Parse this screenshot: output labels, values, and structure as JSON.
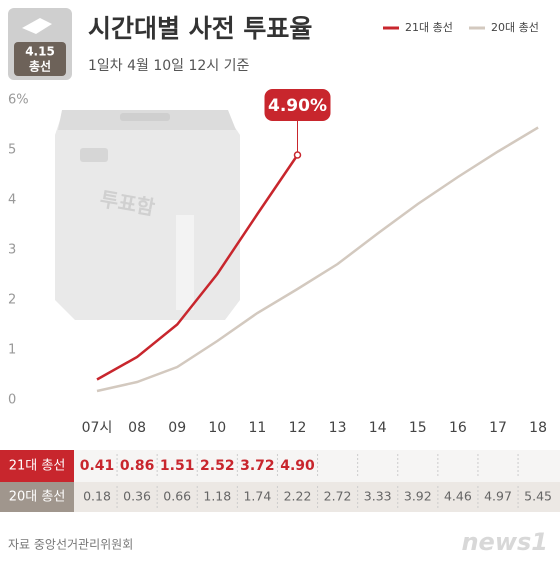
{
  "chart_data": {
    "type": "line",
    "title": "시간대별 사전 투표율",
    "subtitle": "1일차 4월 10일  12시 기준",
    "badge": [
      "4.15",
      "총선"
    ],
    "illustration_label": "투표함",
    "annotation": "4.90%",
    "categories": [
      "07시",
      "08",
      "09",
      "10",
      "11",
      "12",
      "13",
      "14",
      "15",
      "16",
      "17",
      "18"
    ],
    "series": [
      {
        "name": "21대 총선",
        "color": "#c8262d",
        "values": [
          0.41,
          0.86,
          1.51,
          2.52,
          3.72,
          4.9,
          null,
          null,
          null,
          null,
          null,
          null
        ],
        "value_labels": [
          "0.41",
          "0.86",
          "1.51",
          "2.52",
          "3.72",
          "4.90",
          null,
          null,
          null,
          null,
          null,
          null
        ]
      },
      {
        "name": "20대 총선",
        "color": "#d3c9bf",
        "values": [
          0.18,
          0.36,
          0.66,
          1.18,
          1.74,
          2.22,
          2.72,
          3.33,
          3.92,
          4.46,
          4.97,
          5.45
        ]
      }
    ],
    "ylim": [
      0,
      6
    ],
    "yticks": [
      0,
      1,
      2,
      3,
      4,
      5,
      {
        "value": 6,
        "label": "6%"
      }
    ],
    "legend": "top-right",
    "source": "자료 중앙선거관리위원회",
    "logo": "news1"
  }
}
